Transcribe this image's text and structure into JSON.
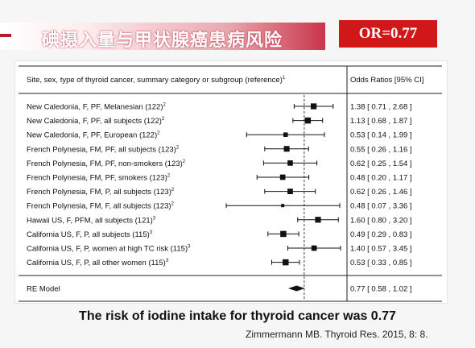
{
  "header": {
    "title": "碘摄入量与甲状腺癌患病风险",
    "badge": "OR=0.77"
  },
  "colors": {
    "accent": "#b11c2e",
    "badge_bg": "#d01818"
  },
  "chart_data": {
    "type": "forest",
    "column_headers": {
      "study": "Site, sex, type of thyroid cancer, summary category or subgroup (reference)",
      "study_sup": "1",
      "estimate": "Odds Ratios [95% CI]"
    },
    "studies": [
      {
        "label": "New Caledonia, F, PF, Melanesian (122)",
        "sup": "2",
        "or": 1.38,
        "lo": 0.71,
        "hi": 2.68,
        "text": "1.38 [ 0.71 , 2.68 ]"
      },
      {
        "label": "New Caledonia, F, PF, all subjects (122)",
        "sup": "2",
        "or": 1.13,
        "lo": 0.68,
        "hi": 1.87,
        "text": "1.13 [ 0.68 , 1.87 ]"
      },
      {
        "label": "New Caledonia, F, PF, European (122)",
        "sup": "2",
        "or": 0.53,
        "lo": 0.14,
        "hi": 1.99,
        "text": "0.53 [ 0.14 , 1.99 ]"
      },
      {
        "label": "French Polynesia, FM, PF, all subjects (123)",
        "sup": "2",
        "or": 0.55,
        "lo": 0.26,
        "hi": 1.16,
        "text": "0.55 [ 0.26 , 1.16 ]"
      },
      {
        "label": "French Polynesia, FM, PF, non-smokers (123)",
        "sup": "2",
        "or": 0.62,
        "lo": 0.25,
        "hi": 1.54,
        "text": "0.62 [ 0.25 , 1.54 ]"
      },
      {
        "label": "French Polynesia, FM, PF, smokers (123)",
        "sup": "2",
        "or": 0.48,
        "lo": 0.2,
        "hi": 1.17,
        "text": "0.48 [ 0.20 , 1.17 ]"
      },
      {
        "label": "French Polynesia, FM, P, all subjects (123)",
        "sup": "2",
        "or": 0.62,
        "lo": 0.26,
        "hi": 1.46,
        "text": "0.62 [ 0.26 , 1.46 ]"
      },
      {
        "label": "French Polynesia, FM, F, all subjects (123)",
        "sup": "2",
        "or": 0.48,
        "lo": 0.07,
        "hi": 3.36,
        "text": "0.48 [ 0.07 , 3.36 ]"
      },
      {
        "label": "Hawaii US, F, PFM, all subjects (121)",
        "sup": "3",
        "or": 1.6,
        "lo": 0.8,
        "hi": 3.2,
        "text": "1.60 [ 0.80 , 3.20 ]"
      },
      {
        "label": "California US, F, P, all subjects (115)",
        "sup": "3",
        "or": 0.49,
        "lo": 0.29,
        "hi": 0.83,
        "text": "0.49 [ 0.29 , 0.83 ]"
      },
      {
        "label": "California US, F, P, women at high TC risk (115)",
        "sup": "3",
        "or": 1.4,
        "lo": 0.57,
        "hi": 3.45,
        "text": "1.40 [ 0.57 , 3.45 ]"
      },
      {
        "label": "California US, F, P, all other women (115)",
        "sup": "3",
        "or": 0.53,
        "lo": 0.33,
        "hi": 0.85,
        "text": "0.53 [ 0.33 , 0.85 ]"
      }
    ],
    "summary": {
      "label": "RE Model",
      "or": 0.77,
      "lo": 0.58,
      "hi": 1.02,
      "text": "0.77 [ 0.58 , 1.02 ]"
    },
    "reference_line": 1,
    "xscale": "log",
    "xlim": [
      0.07,
      3.45
    ]
  },
  "caption": "The risk of iodine intake for thyroid cancer was 0.77",
  "source": "Zimmermann MB. Thyroid Res. 2015, 8: 8."
}
